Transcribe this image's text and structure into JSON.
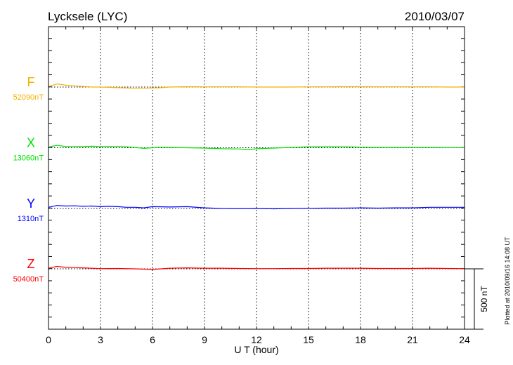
{
  "chart_data": {
    "type": "line",
    "title": "Lycksele (LYC)",
    "date": "2010/03/07",
    "xlabel": "U T (hour)",
    "xlim": [
      0,
      24
    ],
    "xticks": [
      "0",
      "3",
      "6",
      "9",
      "12",
      "15",
      "18",
      "21",
      "24"
    ],
    "grid": "dotted vertical every 3 hours",
    "scale_bar_label": "500 nT",
    "footer": "Plotted at 2010/09/16 14:08 UT",
    "series": [
      {
        "name": "F",
        "baseline": "52090nT",
        "color": "#f5b000",
        "x": [
          0,
          0.5,
          1,
          1.5,
          2,
          2.5,
          3,
          4,
          4.5,
          5,
          5.5,
          6,
          6.5,
          7,
          8,
          9,
          10,
          11,
          12,
          13,
          14,
          15,
          16,
          17,
          18,
          19,
          20,
          21,
          22,
          23,
          24
        ],
        "values": [
          5,
          25,
          15,
          10,
          5,
          0,
          0,
          -5,
          -8,
          -10,
          -10,
          -8,
          -5,
          0,
          3,
          2,
          2,
          2,
          0,
          0,
          0,
          2,
          2,
          3,
          3,
          2,
          2,
          2,
          2,
          0,
          0
        ]
      },
      {
        "name": "X",
        "baseline": "13060nT",
        "color": "#00e000",
        "x": [
          0,
          0.5,
          1,
          1.5,
          2,
          2.5,
          3,
          3.5,
          4,
          4.5,
          5,
          5.5,
          6,
          6.5,
          7,
          8,
          9,
          10,
          11,
          11.5,
          12,
          13,
          14,
          15,
          16,
          17,
          18,
          19,
          20,
          21,
          22,
          23,
          24
        ],
        "values": [
          5,
          20,
          10,
          10,
          10,
          12,
          10,
          10,
          10,
          8,
          3,
          -5,
          0,
          5,
          3,
          0,
          -3,
          -8,
          -10,
          -15,
          -8,
          -3,
          3,
          8,
          8,
          8,
          5,
          3,
          3,
          3,
          3,
          2,
          2
        ]
      },
      {
        "name": "Y",
        "baseline": "1310nT",
        "color": "#0000ff",
        "x": [
          0,
          0.5,
          1,
          1.5,
          2,
          2.5,
          3,
          3.5,
          4,
          4.5,
          5,
          5.5,
          6,
          7,
          8,
          9,
          10,
          11,
          12,
          13,
          14,
          15,
          16,
          17,
          18,
          19,
          20,
          21,
          22,
          23,
          24
        ],
        "values": [
          10,
          25,
          20,
          22,
          18,
          20,
          15,
          18,
          15,
          10,
          10,
          5,
          15,
          12,
          15,
          5,
          0,
          -2,
          0,
          -3,
          0,
          2,
          3,
          3,
          5,
          3,
          5,
          5,
          10,
          10,
          10
        ]
      },
      {
        "name": "Z",
        "baseline": "50400nT",
        "color": "#ff0000",
        "x": [
          0,
          0.5,
          1,
          1.5,
          2,
          2.5,
          3,
          4,
          5,
          6,
          6.5,
          7,
          8,
          9,
          10,
          11,
          12,
          13,
          14,
          15,
          16,
          17,
          18,
          19,
          20,
          21,
          22,
          23,
          24
        ],
        "values": [
          5,
          20,
          12,
          10,
          8,
          5,
          2,
          3,
          0,
          -5,
          0,
          5,
          8,
          5,
          5,
          3,
          2,
          2,
          3,
          3,
          5,
          5,
          5,
          3,
          3,
          3,
          5,
          3,
          2
        ]
      }
    ]
  }
}
